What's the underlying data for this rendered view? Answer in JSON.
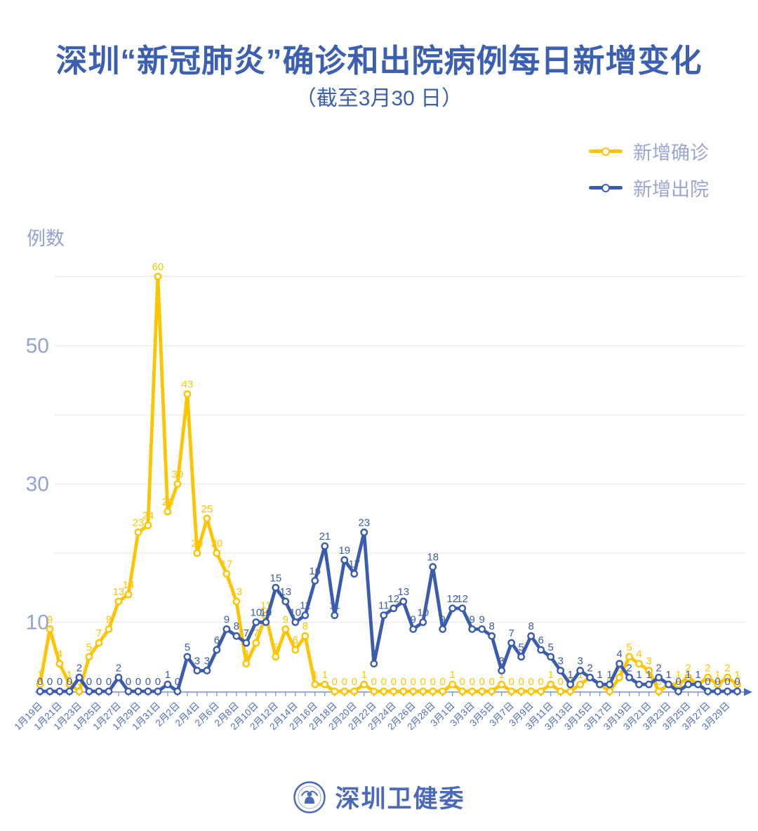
{
  "title": "深圳“新冠肺炎”确诊和出院病例每日新增变化",
  "subtitle": "（截至3月30 日）",
  "ylabel": "例数",
  "footer": {
    "brand": "深圳卫健委"
  },
  "legend": [
    {
      "label": "新增确诊",
      "color": "#FFC400"
    },
    {
      "label": "新增出院",
      "color": "#3A5CAE"
    }
  ],
  "colors": {
    "title_blue": "#3B5FB1",
    "legend_text": "#9AA7D5",
    "axis_label": "#93A2D3",
    "date_label": "#4E6EBC",
    "axis_line": "#7C90C6",
    "gridline": "#EBEBEB",
    "confirmed_yellow": "#FFC400",
    "discharged_blue": "#3A5CAE"
  },
  "chart_data": {
    "type": "line",
    "title": "深圳“新冠肺炎”确诊和出院病例每日新增变化（截至3月30日）",
    "xlabel": "",
    "ylabel": "例数",
    "ylim": [
      0,
      60
    ],
    "yticks_labeled": [
      10,
      30,
      50
    ],
    "gridlines": [
      10,
      20,
      30,
      40,
      50,
      60
    ],
    "grid": true,
    "legend_position": "top-right",
    "x_tick_every": 2,
    "x": [
      "1月19日",
      "1月20日",
      "1月21日",
      "1月22日",
      "1月23日",
      "1月24日",
      "1月25日",
      "1月26日",
      "1月27日",
      "1月28日",
      "1月29日",
      "1月30日",
      "1月31日",
      "2月1日",
      "2月2日",
      "2月3日",
      "2月4日",
      "2月5日",
      "2月6日",
      "2月7日",
      "2月8日",
      "2月9日",
      "2月10日",
      "2月11日",
      "2月12日",
      "2月13日",
      "2月14日",
      "2月15日",
      "2月16日",
      "2月17日",
      "2月18日",
      "2月19日",
      "2月20日",
      "2月21日",
      "2月22日",
      "2月23日",
      "2月24日",
      "2月25日",
      "2月26日",
      "2月27日",
      "2月28日",
      "2月29日",
      "3月1日",
      "3月2日",
      "3月3日",
      "3月4日",
      "3月5日",
      "3月6日",
      "3月7日",
      "3月8日",
      "3月9日",
      "3月10日",
      "3月11日",
      "3月12日",
      "3月13日",
      "3月14日",
      "3月15日",
      "3月16日",
      "3月17日",
      "3月18日",
      "3月19日",
      "3月20日",
      "3月21日",
      "3月22日",
      "3月23日",
      "3月24日",
      "3月25日",
      "3月26日",
      "3月27日",
      "3月28日",
      "3月29日",
      "3月30日"
    ],
    "series": [
      {
        "name": "新增确诊",
        "color": "#FFC400",
        "values": [
          1,
          9,
          4,
          1,
          0,
          5,
          7,
          9,
          13,
          14,
          23,
          24,
          60,
          26,
          30,
          43,
          20,
          25,
          20,
          17,
          13,
          4,
          7,
          11,
          5,
          9,
          6,
          8,
          1,
          1,
          0,
          0,
          0,
          1,
          0,
          0,
          0,
          0,
          0,
          0,
          0,
          0,
          1,
          0,
          0,
          0,
          0,
          1,
          0,
          0,
          0,
          0,
          1,
          0,
          0,
          1,
          2,
          1,
          0,
          2,
          5,
          4,
          3,
          0,
          1,
          1,
          2,
          1,
          2,
          1,
          2,
          1
        ]
      },
      {
        "name": "新增出院",
        "color": "#3A5CAE",
        "values": [
          0,
          0,
          0,
          0,
          2,
          0,
          0,
          0,
          2,
          0,
          0,
          0,
          0,
          1,
          0,
          5,
          3,
          3,
          6,
          9,
          8,
          7,
          10,
          10,
          15,
          13,
          10,
          11,
          16,
          21,
          11,
          19,
          17,
          23,
          4,
          11,
          12,
          13,
          9,
          10,
          18,
          9,
          12,
          12,
          9,
          9,
          8,
          3,
          7,
          5,
          8,
          6,
          5,
          3,
          1,
          3,
          2,
          1,
          1,
          4,
          2,
          1,
          1,
          2,
          1,
          0,
          1,
          1,
          0,
          0,
          0,
          0
        ]
      }
    ]
  }
}
